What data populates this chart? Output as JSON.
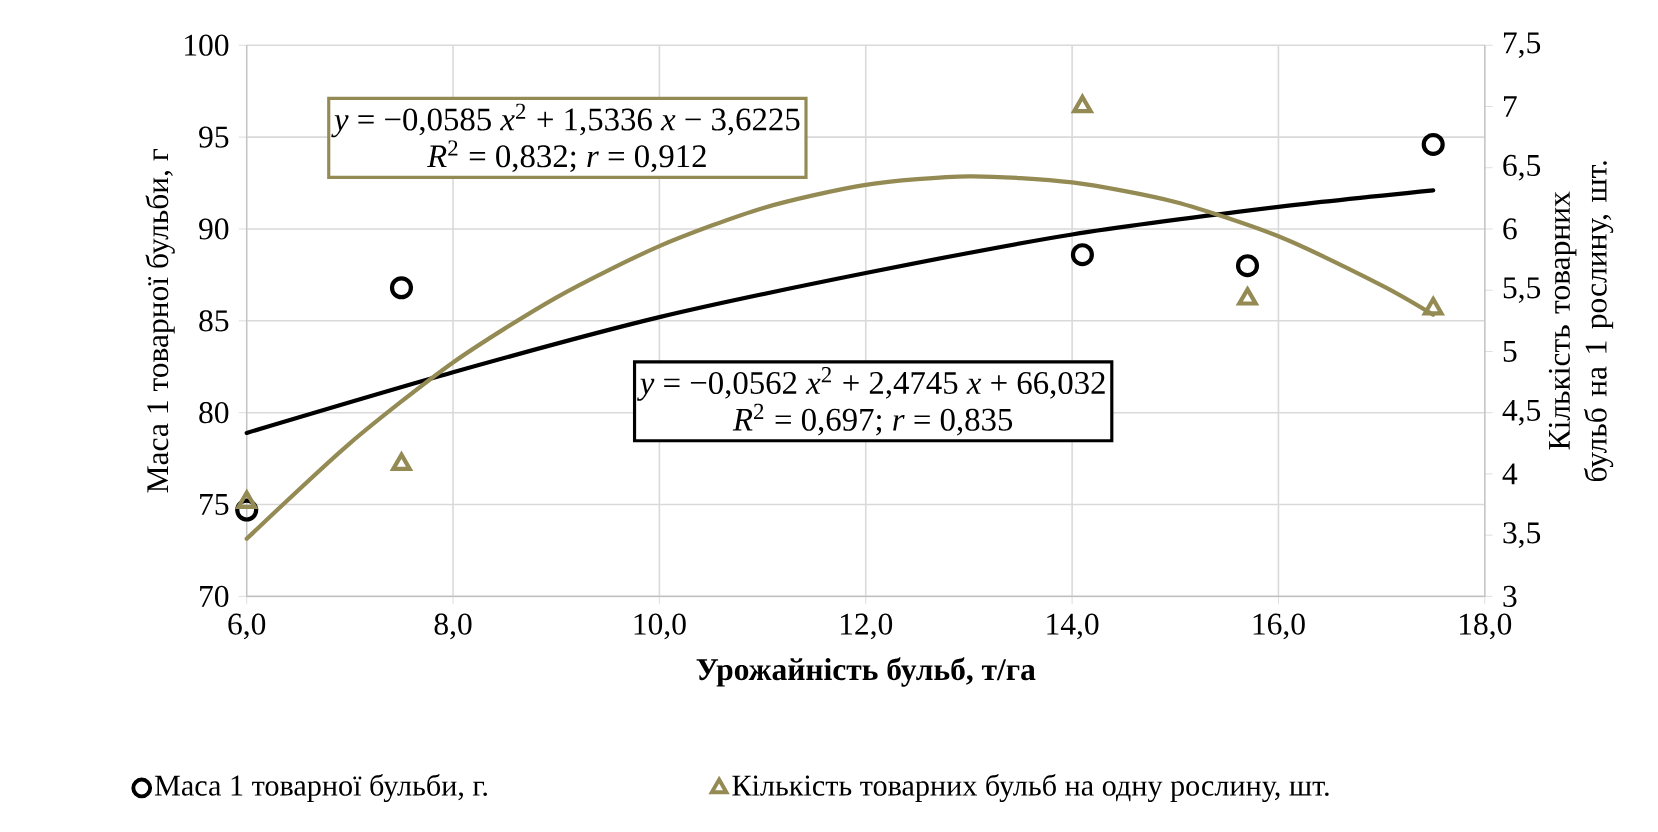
{
  "chart_data": {
    "type": "scatter",
    "xlabel": "Урожайність бульб, т/га",
    "ylabel": "Маса 1 товарної бульби, г",
    "y2label": "Кількість товарних бульб на 1 рослину, шт.",
    "xlim": [
      6,
      18
    ],
    "xticks": [
      {
        "value": 6,
        "label": "6,0"
      },
      {
        "value": 8,
        "label": "8,0"
      },
      {
        "value": 10,
        "label": "10,0"
      },
      {
        "value": 12,
        "label": "12,0"
      },
      {
        "value": 14,
        "label": "14,0"
      },
      {
        "value": 16,
        "label": "16,0"
      },
      {
        "value": 18,
        "label": "18,0"
      }
    ],
    "ylim": [
      70,
      100
    ],
    "yticks": [
      70,
      75,
      80,
      85,
      90,
      95,
      100
    ],
    "y2lim": [
      3,
      7.5
    ],
    "y2ticks": [
      3,
      {
        "value": 3.5,
        "label": "3,5"
      },
      4,
      {
        "value": 4.5,
        "label": "4,5"
      },
      5,
      {
        "value": 5.5,
        "label": "5,5"
      },
      6,
      {
        "value": 6.5,
        "label": "6,5"
      },
      7,
      {
        "value": 7.5,
        "label": "7,5"
      }
    ],
    "grid": true,
    "legend": "bottom",
    "series": [
      {
        "name": "Маса 1 товарної бульби, г.",
        "type": "scatter",
        "marker": "circle",
        "color": "#000000",
        "x": [
          6.0,
          7.5,
          14.1,
          15.7,
          17.5
        ],
        "values": [
          74.7,
          86.8,
          88.6,
          88.0,
          94.6
        ]
      },
      {
        "name": "Кількість товарних бульб на одну рослину, шт.",
        "type": "scatter",
        "marker": "triangle",
        "axis": "y2",
        "color": "#948a54",
        "x": [
          6.0,
          7.5,
          14.1,
          15.7,
          17.5
        ],
        "values": [
          3.77,
          4.08,
          7.0,
          5.43,
          5.35
        ]
      },
      {
        "type": "line",
        "color": "#000000",
        "x": [
          6,
          8,
          10,
          12,
          14,
          16,
          17.5
        ],
        "values": [
          78.9,
          82.2,
          85.2,
          87.6,
          89.7,
          91.2,
          92.1
        ]
      },
      {
        "type": "line",
        "axis": "y2",
        "color": "#948a54",
        "x": [
          6,
          7,
          8,
          9,
          10,
          11,
          12,
          13,
          14,
          15,
          16,
          17,
          17.5
        ],
        "values": [
          3.47,
          4.25,
          4.91,
          5.44,
          5.86,
          6.17,
          6.36,
          6.43,
          6.38,
          6.22,
          5.94,
          5.54,
          5.3
        ]
      }
    ],
    "annotations": [
      "*y* = −0,0585 *x*$^{2}$ + 1,5336 *x* − 3,6225",
      "*R*$^{2}$ = 0,832; *r* = 0,912",
      "*y* = −0,0562 *x*$^{2}$ + 2,4745 *x* + 66,032",
      "*R*$^{2}$ = 0,697; *r* = 0,835"
    ]
  }
}
